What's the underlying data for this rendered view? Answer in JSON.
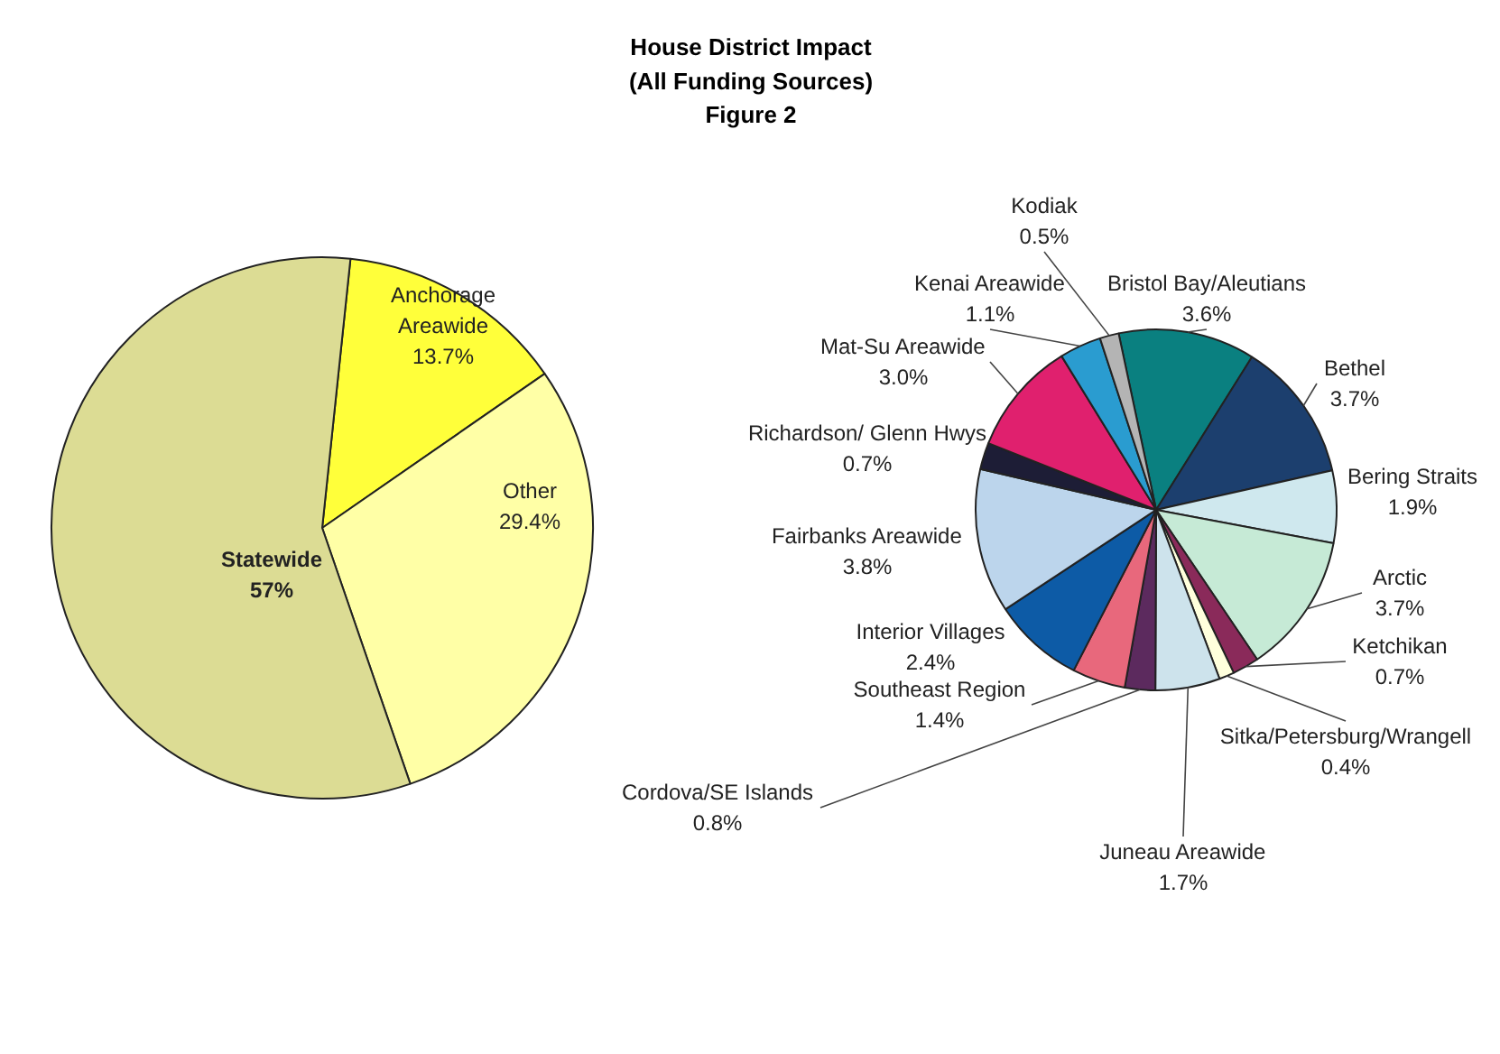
{
  "chart_data": [
    {
      "type": "pie",
      "title": "House District Impact\n(All Funding Sources)\nFigure 2",
      "categories": [
        "Anchorage\nAreawide",
        "Other",
        "Statewide"
      ],
      "values": [
        13.7,
        29.4,
        57
      ],
      "value_labels": [
        "13.7%",
        "29.4%",
        "57%"
      ],
      "colors": [
        "#ffff3a",
        "#ffffa6",
        "#dcdc94"
      ]
    },
    {
      "type": "pie",
      "categories": [
        "Bristol Bay/Aleutians",
        "Bethel",
        "Bering Straits",
        "Arctic",
        "Ketchikan",
        "Sitka/Petersburg/Wrangell",
        "Juneau Areawide",
        "Cordova/SE Islands",
        "Southeast Region",
        "Interior Villages",
        "Fairbanks Areawide",
        "Richardson/ Glenn Hwys",
        "Mat-Su Areawide",
        "Kenai Areawide",
        "Kodiak"
      ],
      "values": [
        3.6,
        3.7,
        1.9,
        3.7,
        0.7,
        0.4,
        1.7,
        0.8,
        1.4,
        2.4,
        3.8,
        0.7,
        3.0,
        1.1,
        0.5
      ],
      "value_labels": [
        "3.6%",
        "3.7%",
        "1.9%",
        "3.7%",
        "0.7%",
        "0.4%",
        "1.7%",
        "0.8%",
        "1.4%",
        "2.4%",
        "3.8%",
        "0.7%",
        "3.0%",
        "1.1%",
        "0.5%"
      ],
      "colors": [
        "#0a8080",
        "#1c3f6e",
        "#cfe8ee",
        "#c6ead6",
        "#8a2a5a",
        "#ffffdc",
        "#cde3ec",
        "#5c2a5e",
        "#e8687c",
        "#0d5ba6",
        "#bcd5ec",
        "#1d1d36",
        "#e0206e",
        "#2a9cd0",
        "#b4b4b4"
      ]
    }
  ]
}
